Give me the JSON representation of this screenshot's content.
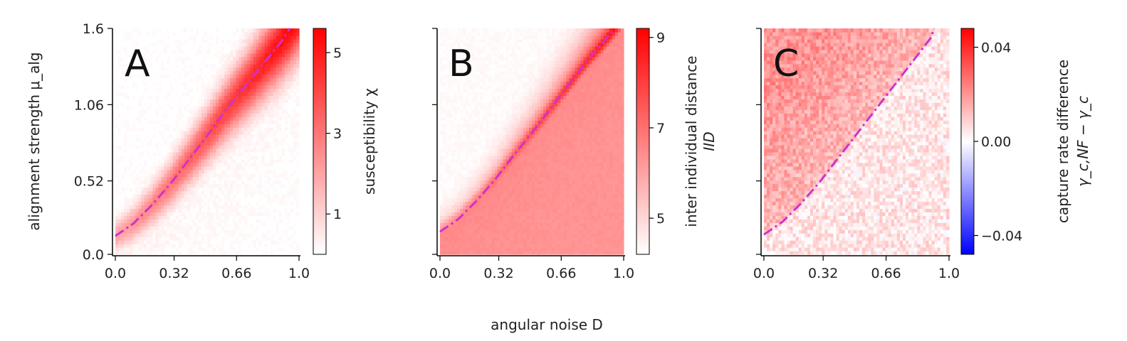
{
  "figure": {
    "shared_xlabel": "angular noise D",
    "ylabel": "alignment strength μ_alg"
  },
  "chart_data": [
    {
      "panel": "A",
      "type": "heatmap",
      "x_ticks": [
        "0.0",
        "0.32",
        "0.66",
        "1.0"
      ],
      "x_tick_values": [
        0.0,
        0.32,
        0.66,
        1.0
      ],
      "y_ticks": [
        "0.0",
        "0.52",
        "1.06",
        "1.6"
      ],
      "y_tick_values": [
        0.0,
        0.52,
        1.06,
        1.6
      ],
      "xlim": [
        0,
        1
      ],
      "ylim": [
        0,
        1.6
      ],
      "colorbar": {
        "label": "susceptibility χ",
        "ticks": [
          "1",
          "3",
          "5"
        ],
        "tick_values": [
          1,
          3,
          5
        ],
        "range": [
          0,
          5.6
        ],
        "colors": [
          "#ffffff",
          "#ff0000"
        ]
      },
      "critical_line": {
        "style": "dash-dot",
        "color": "#cc33cc",
        "points": [
          [
            0.0,
            0.13
          ],
          [
            0.1,
            0.22
          ],
          [
            0.2,
            0.35
          ],
          [
            0.3,
            0.5
          ],
          [
            0.4,
            0.67
          ],
          [
            0.5,
            0.84
          ],
          [
            0.6,
            1.02
          ],
          [
            0.7,
            1.18
          ],
          [
            0.8,
            1.34
          ],
          [
            0.9,
            1.5
          ],
          [
            0.95,
            1.6
          ]
        ]
      },
      "field": "ridge"
    },
    {
      "panel": "B",
      "type": "heatmap",
      "x_ticks": [
        "0.0",
        "0.32",
        "0.66",
        "1.0"
      ],
      "x_tick_values": [
        0.0,
        0.32,
        0.66,
        1.0
      ],
      "y_tick_values": [
        0.0,
        0.52,
        1.06,
        1.6
      ],
      "xlim": [
        0,
        1
      ],
      "ylim": [
        0,
        1.6
      ],
      "colorbar": {
        "label": "inter individual distance",
        "label2": "IID",
        "ticks": [
          "5",
          "7",
          "9"
        ],
        "tick_values": [
          5,
          7,
          9
        ],
        "range": [
          4.2,
          9.2
        ],
        "colors": [
          "#ffffff",
          "#ff0000"
        ]
      },
      "critical_line": {
        "style": "dash-dot",
        "color": "#cc33cc",
        "points": [
          [
            0.0,
            0.16
          ],
          [
            0.1,
            0.25
          ],
          [
            0.2,
            0.38
          ],
          [
            0.3,
            0.53
          ],
          [
            0.4,
            0.7
          ],
          [
            0.5,
            0.86
          ],
          [
            0.6,
            1.03
          ],
          [
            0.7,
            1.2
          ],
          [
            0.8,
            1.37
          ],
          [
            0.9,
            1.52
          ],
          [
            0.95,
            1.6
          ]
        ]
      },
      "field": "step"
    },
    {
      "panel": "C",
      "type": "heatmap",
      "x_ticks": [
        "0.0",
        "0.32",
        "0.66",
        "1.0"
      ],
      "x_tick_values": [
        0.0,
        0.32,
        0.66,
        1.0
      ],
      "y_tick_values": [
        0.0,
        0.52,
        1.06,
        1.6
      ],
      "xlim": [
        0,
        1
      ],
      "ylim": [
        0,
        1.6
      ],
      "colorbar": {
        "label": "capture rate difference",
        "label2": "γ_c,NF − γ_c",
        "ticks": [
          "−0.04",
          "0.00",
          "0.04"
        ],
        "tick_values": [
          -0.04,
          0.0,
          0.04
        ],
        "range": [
          -0.048,
          0.048
        ],
        "colors": [
          "#0000ff",
          "#ffffff",
          "#ff0000"
        ]
      },
      "critical_line": {
        "style": "dash-dot",
        "color": "#cc33cc",
        "points": [
          [
            0.0,
            0.14
          ],
          [
            0.1,
            0.23
          ],
          [
            0.2,
            0.36
          ],
          [
            0.3,
            0.51
          ],
          [
            0.4,
            0.68
          ],
          [
            0.5,
            0.85
          ],
          [
            0.6,
            1.02
          ],
          [
            0.7,
            1.19
          ],
          [
            0.8,
            1.36
          ],
          [
            0.9,
            1.53
          ],
          [
            0.92,
            1.6
          ]
        ]
      },
      "field": "noise"
    }
  ]
}
